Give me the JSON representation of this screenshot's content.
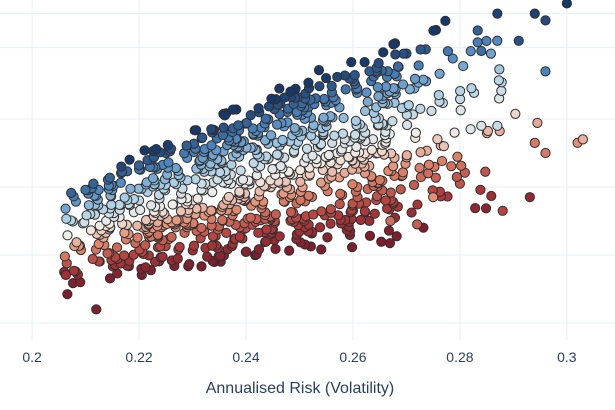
{
  "chart_data": {
    "type": "scatter",
    "title": "",
    "xlabel": "Annualised Risk (Volatility)",
    "ylabel": "",
    "xlim": [
      0.194,
      0.309
    ],
    "ylim": [
      0.0,
      1.0
    ],
    "x_ticks": [
      "0.2",
      "0.22",
      "0.24",
      "0.26",
      "0.28",
      "0.3"
    ],
    "x_tick_values": [
      0.2,
      0.22,
      0.24,
      0.26,
      0.28,
      0.3
    ],
    "y_ticks": [],
    "grid": true,
    "legend": "none",
    "point_count_estimate": 1000,
    "colorscale": "RdBu",
    "colors": {
      "grid": "#e8eef5",
      "text": "#2a3f5f",
      "low": "#8e1b2b",
      "mid": "#f4eee7",
      "high": "#163a66",
      "marker_outline": "#2f2f2f"
    },
    "series": [
      {
        "x": [
          0.206,
          0.209,
          0.212,
          0.214,
          0.216,
          0.218,
          0.22,
          0.223,
          0.225,
          0.228,
          0.231,
          0.234,
          0.237,
          0.24,
          0.243,
          0.246,
          0.249,
          0.252,
          0.255,
          0.258,
          0.261,
          0.266,
          0.273,
          0.281,
          0.289
        ],
        "y": [
          0.23,
          0.16,
          0.18,
          0.08,
          0.1,
          0.17,
          0.12,
          0.18,
          0.22,
          0.14,
          0.2,
          0.16,
          0.24,
          0.18,
          0.21,
          0.17,
          0.23,
          0.26,
          0.25,
          0.24,
          0.29,
          0.33,
          0.39,
          0.43,
          0.47
        ],
        "z": [
          0.08,
          0.02,
          0.09,
          0.01,
          0.03,
          0.06,
          0.05,
          0.1,
          0.13,
          0.06,
          0.11,
          0.07,
          0.15,
          0.09,
          0.12,
          0.08,
          0.14,
          0.19,
          0.18,
          0.16,
          0.22,
          0.25,
          0.31,
          0.33,
          0.37
        ]
      },
      {
        "x": [
          0.207,
          0.21,
          0.213,
          0.215,
          0.218,
          0.221,
          0.224,
          0.227,
          0.23,
          0.233,
          0.236,
          0.239,
          0.242,
          0.245,
          0.248,
          0.251,
          0.254,
          0.257,
          0.26,
          0.264,
          0.268,
          0.275,
          0.284,
          0.295,
          0.304
        ],
        "y": [
          0.31,
          0.37,
          0.43,
          0.47,
          0.52,
          0.48,
          0.56,
          0.61,
          0.58,
          0.63,
          0.67,
          0.65,
          0.69,
          0.72,
          0.7,
          0.74,
          0.78,
          0.79,
          0.81,
          0.84,
          0.87,
          0.89,
          0.92,
          0.95,
          0.99
        ],
        "z": [
          0.29,
          0.38,
          0.46,
          0.5,
          0.56,
          0.49,
          0.6,
          0.67,
          0.62,
          0.7,
          0.73,
          0.7,
          0.77,
          0.8,
          0.78,
          0.82,
          0.88,
          0.9,
          0.91,
          0.93,
          0.95,
          0.96,
          0.98,
          0.99,
          1.0
        ]
      }
    ]
  }
}
